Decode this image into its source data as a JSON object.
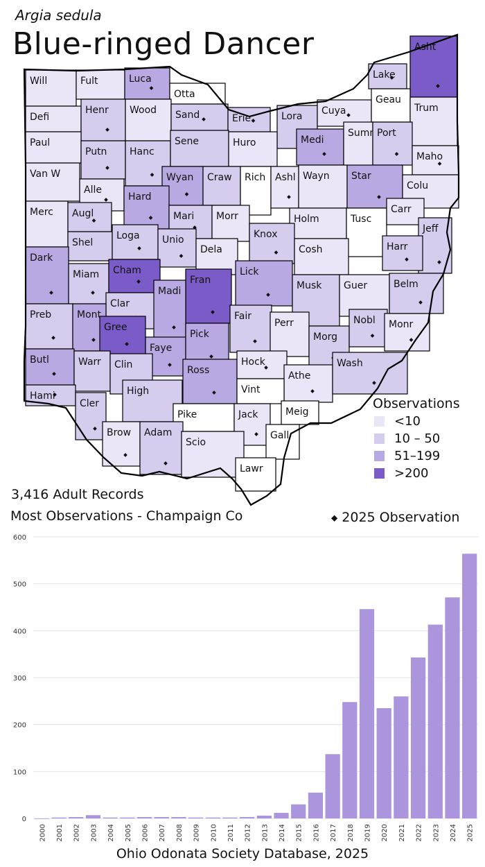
{
  "header": {
    "scientific_name": "Argia sedula",
    "common_name": "Blue-ringed Dancer"
  },
  "stats": {
    "records": "3,416 Adult Records",
    "most": "Most Observations - Champaign Co"
  },
  "legend": {
    "title": "Observations",
    "items": [
      {
        "label": "<10",
        "color": "#ebe6f7"
      },
      {
        "label": "10 – 50",
        "color": "#d5ccee"
      },
      {
        "label": "51–199",
        "color": "#b9a9e2"
      },
      {
        "label": ">200",
        "color": "#7a5bc7"
      }
    ],
    "dot_label": "2025  Observation"
  },
  "colors": {
    "none": "#ffffff",
    "c1": "#ebe6f7",
    "c2": "#d5ccee",
    "c3": "#b9a9e2",
    "c4": "#7a5bc7",
    "bar": "#ab95dc"
  },
  "counties": [
    {
      "name": "Will",
      "level": 1,
      "dot": false
    },
    {
      "name": "Fult",
      "level": 1,
      "dot": false
    },
    {
      "name": "Luca",
      "level": 3,
      "dot": true
    },
    {
      "name": "Otta",
      "level": 0,
      "dot": false
    },
    {
      "name": "Lake",
      "level": 2,
      "dot": true
    },
    {
      "name": "Asht",
      "level": 4,
      "dot": true
    },
    {
      "name": "Defi",
      "level": 1,
      "dot": false
    },
    {
      "name": "Henr",
      "level": 2,
      "dot": true
    },
    {
      "name": "Wood",
      "level": 1,
      "dot": false
    },
    {
      "name": "Sand",
      "level": 2,
      "dot": true
    },
    {
      "name": "Erie",
      "level": 2,
      "dot": true
    },
    {
      "name": "Lora",
      "level": 2,
      "dot": true
    },
    {
      "name": "Cuya",
      "level": 1,
      "dot": true
    },
    {
      "name": "Geau",
      "level": 0,
      "dot": false
    },
    {
      "name": "Trum",
      "level": 1,
      "dot": false
    },
    {
      "name": "Paul",
      "level": 1,
      "dot": false
    },
    {
      "name": "Putn",
      "level": 2,
      "dot": true
    },
    {
      "name": "Hanc",
      "level": 2,
      "dot": true
    },
    {
      "name": "Sene",
      "level": 2,
      "dot": false
    },
    {
      "name": "Huro",
      "level": 1,
      "dot": false
    },
    {
      "name": "Medi",
      "level": 3,
      "dot": true
    },
    {
      "name": "Summ",
      "level": 1,
      "dot": false
    },
    {
      "name": "Port",
      "level": 2,
      "dot": true
    },
    {
      "name": "Maho",
      "level": 1,
      "dot": true
    },
    {
      "name": "Van W",
      "level": 1,
      "dot": false
    },
    {
      "name": "Alle",
      "level": 1,
      "dot": true
    },
    {
      "name": "Wyan",
      "level": 3,
      "dot": true
    },
    {
      "name": "Craw",
      "level": 2,
      "dot": false
    },
    {
      "name": "Rich",
      "level": 0,
      "dot": false
    },
    {
      "name": "Ashl",
      "level": 1,
      "dot": true
    },
    {
      "name": "Wayn",
      "level": 1,
      "dot": false
    },
    {
      "name": "Star",
      "level": 3,
      "dot": true
    },
    {
      "name": "Colu",
      "level": 1,
      "dot": false
    },
    {
      "name": "Merc",
      "level": 1,
      "dot": false
    },
    {
      "name": "Augl",
      "level": 2,
      "dot": true
    },
    {
      "name": "Hard",
      "level": 3,
      "dot": true
    },
    {
      "name": "Mari",
      "level": 2,
      "dot": true
    },
    {
      "name": "Morr",
      "level": 1,
      "dot": false
    },
    {
      "name": "Holm",
      "level": 1,
      "dot": false
    },
    {
      "name": "Tusc",
      "level": 0,
      "dot": false
    },
    {
      "name": "Carr",
      "level": 1,
      "dot": false
    },
    {
      "name": "Jeff",
      "level": 2,
      "dot": true
    },
    {
      "name": "Shel",
      "level": 2,
      "dot": false
    },
    {
      "name": "Loga",
      "level": 2,
      "dot": true
    },
    {
      "name": "Unio",
      "level": 2,
      "dot": true
    },
    {
      "name": "Dela",
      "level": 1,
      "dot": false
    },
    {
      "name": "Knox",
      "level": 2,
      "dot": true
    },
    {
      "name": "Cosh",
      "level": 1,
      "dot": false
    },
    {
      "name": "Harr",
      "level": 2,
      "dot": true
    },
    {
      "name": "Dark",
      "level": 3,
      "dot": true
    },
    {
      "name": "Miam",
      "level": 2,
      "dot": true
    },
    {
      "name": "Cham",
      "level": 4,
      "dot": true
    },
    {
      "name": "Lick",
      "level": 3,
      "dot": true
    },
    {
      "name": "Musk",
      "level": 2,
      "dot": false
    },
    {
      "name": "Guer",
      "level": 1,
      "dot": false
    },
    {
      "name": "Belm",
      "level": 2,
      "dot": true
    },
    {
      "name": "Clar",
      "level": 2,
      "dot": true
    },
    {
      "name": "Fran",
      "level": 4,
      "dot": true
    },
    {
      "name": "Madi",
      "level": 3,
      "dot": true
    },
    {
      "name": "Preb",
      "level": 2,
      "dot": true
    },
    {
      "name": "Mont",
      "level": 3,
      "dot": true
    },
    {
      "name": "Gree",
      "level": 4,
      "dot": true
    },
    {
      "name": "Faye",
      "level": 3,
      "dot": true
    },
    {
      "name": "Pick",
      "level": 3,
      "dot": true
    },
    {
      "name": "Fair",
      "level": 2,
      "dot": true
    },
    {
      "name": "Perr",
      "level": 1,
      "dot": false
    },
    {
      "name": "Morg",
      "level": 2,
      "dot": true
    },
    {
      "name": "Nobl",
      "level": 2,
      "dot": true
    },
    {
      "name": "Monr",
      "level": 1,
      "dot": true
    },
    {
      "name": "Butl",
      "level": 3,
      "dot": true
    },
    {
      "name": "Warr",
      "level": 2,
      "dot": false
    },
    {
      "name": "Clin",
      "level": 2,
      "dot": true
    },
    {
      "name": "Ross",
      "level": 3,
      "dot": true
    },
    {
      "name": "Hock",
      "level": 1,
      "dot": true
    },
    {
      "name": "Athe",
      "level": 1,
      "dot": true
    },
    {
      "name": "Wash",
      "level": 2,
      "dot": true
    },
    {
      "name": "Hami",
      "level": 2,
      "dot": true
    },
    {
      "name": "Cler",
      "level": 2,
      "dot": true
    },
    {
      "name": "High",
      "level": 2,
      "dot": false
    },
    {
      "name": "Vint",
      "level": 0,
      "dot": false
    },
    {
      "name": "Pike",
      "level": 0,
      "dot": false
    },
    {
      "name": "Jack",
      "level": 1,
      "dot": true
    },
    {
      "name": "Meig",
      "level": 0,
      "dot": false
    },
    {
      "name": "Brow",
      "level": 1,
      "dot": true
    },
    {
      "name": "Adam",
      "level": 2,
      "dot": true
    },
    {
      "name": "Scio",
      "level": 1,
      "dot": false
    },
    {
      "name": "Gall",
      "level": 0,
      "dot": false
    },
    {
      "name": "Lawr",
      "level": 0,
      "dot": false
    }
  ],
  "chart_data": {
    "type": "bar",
    "categories": [
      "2000",
      "2001",
      "2002",
      "2003",
      "2004",
      "2005",
      "2006",
      "2007",
      "2008",
      "2009",
      "2010",
      "2011",
      "2012",
      "2013",
      "2014",
      "2015",
      "2016",
      "2017",
      "2018",
      "2019",
      "2020",
      "2021",
      "2022",
      "2023",
      "2024",
      "2025"
    ],
    "values": [
      0,
      2,
      3,
      7,
      2,
      2,
      3,
      3,
      3,
      2,
      2,
      2,
      3,
      6,
      12,
      30,
      55,
      137,
      248,
      446,
      235,
      260,
      343,
      413,
      471,
      564
    ],
    "yticks": [
      0,
      100,
      200,
      300,
      400,
      500,
      600
    ],
    "ylim": [
      0,
      600
    ],
    "grid": true,
    "title": "",
    "xlabel": "",
    "ylabel": ""
  },
  "footer": "Ohio Odonata Society Database, 2025"
}
